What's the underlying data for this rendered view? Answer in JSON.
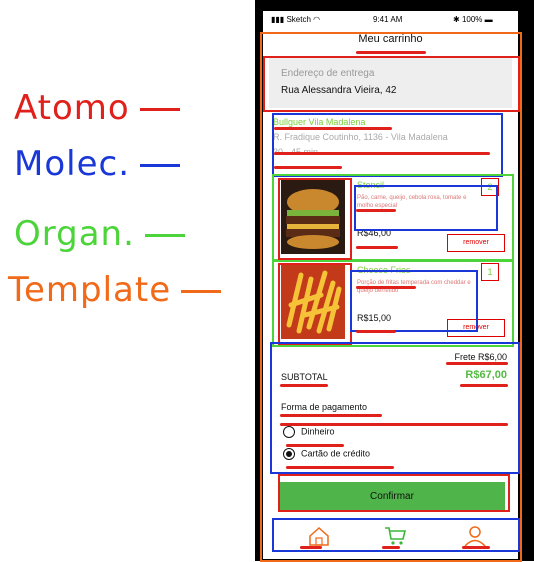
{
  "legend": [
    {
      "text": "Atomo",
      "color": "#e0201a"
    },
    {
      "text": "Molec.",
      "color": "#1a37d8"
    },
    {
      "text": "Organ.",
      "color": "#4cd43a"
    },
    {
      "text": "Template",
      "color": "#f06a1a"
    }
  ],
  "status_bar": {
    "carrier": "Sketch",
    "time": "9:41 AM",
    "battery": "100%"
  },
  "header": {
    "title": "Meu carrinho"
  },
  "address": {
    "label": "Endereço de entrega",
    "value": "Rua Alessandra Vieira, 42"
  },
  "restaurant": {
    "name": "Bullguer Vila Madalena",
    "address": "R. Fradique Coutinho, 1136 - Vila Madalena",
    "eta": "30 - 45 min"
  },
  "items": [
    {
      "name": "Stencil",
      "description": "Pão, carne, queijo, cebola roxa, tomate e molho especial",
      "price": "R$46,00",
      "qty": "2",
      "remove": "remover"
    },
    {
      "name": "Cheese Fries",
      "description": "Porção de fritas temperada com cheddar e queijo derretido",
      "price": "R$15,00",
      "qty": "1",
      "remove": "remover"
    }
  ],
  "summary": {
    "frete": "Frete R$6,00",
    "subtotal_label": "SUBTOTAL",
    "subtotal_value": "R$67,00",
    "payment_label": "Forma de pagamento",
    "options": [
      {
        "label": "Dinheiro",
        "selected": false
      },
      {
        "label": "Cartão de crédito",
        "selected": true
      }
    ]
  },
  "confirm_label": "Confirmar",
  "tabbar": {
    "icons": [
      "home-icon",
      "cart-icon",
      "user-icon"
    ]
  },
  "colors": {
    "annotation_atom": "#e0201a",
    "annotation_molecule": "#1a37d8",
    "annotation_organism": "#4cd43a",
    "annotation_template": "#f06a1a",
    "confirm_button": "#4fb44a"
  }
}
